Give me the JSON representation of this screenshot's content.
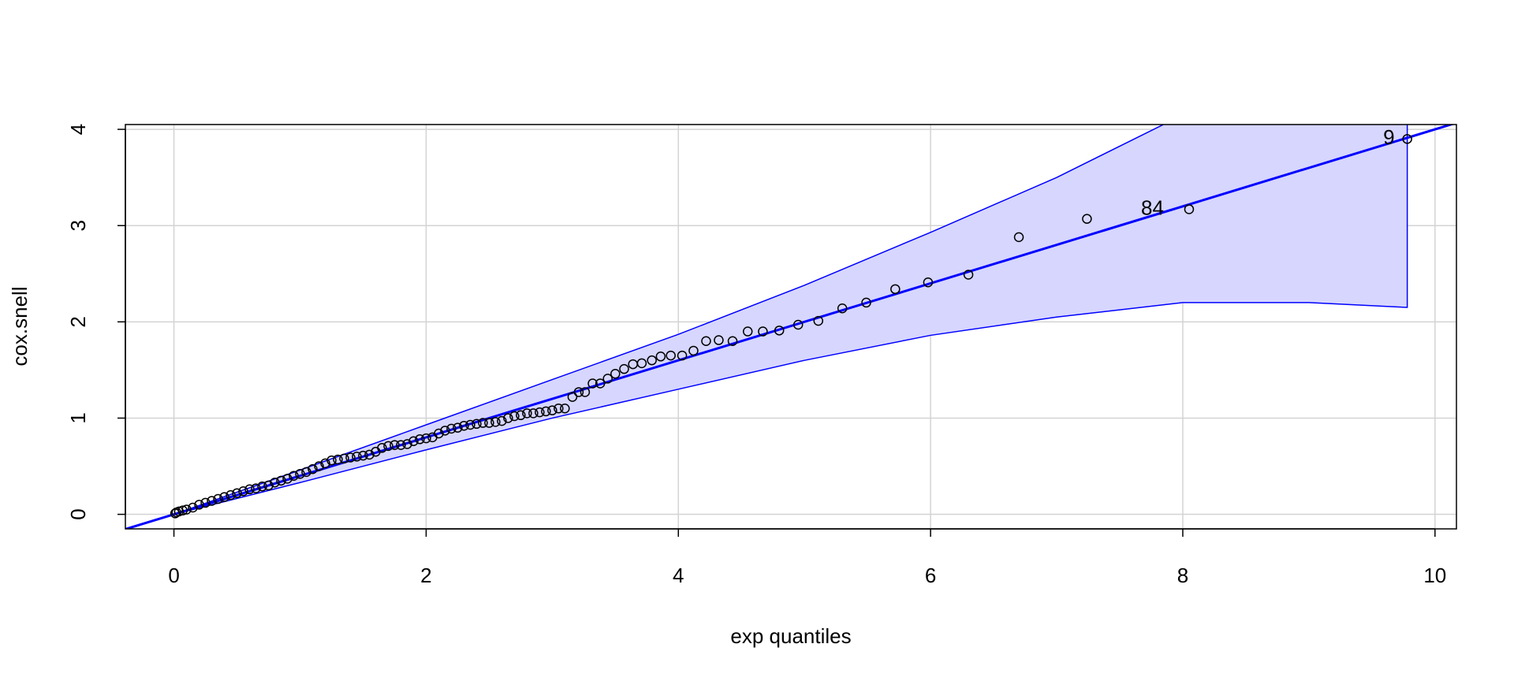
{
  "chart_data": {
    "type": "scatter",
    "x_label": "exp quantiles",
    "y_label": "cox.snell",
    "xlim": [
      -0.385,
      10.17
    ],
    "ylim": [
      -0.151,
      4.05
    ],
    "xticks": [
      0,
      2,
      4,
      6,
      8,
      10
    ],
    "yticks": [
      0,
      1,
      2,
      3,
      4
    ],
    "grid": true,
    "point_color": "#000000",
    "line_color": "#0000ff",
    "band_color": "#d6d6ff",
    "x": [
      9.78,
      8.05,
      7.24,
      6.7,
      6.3,
      5.98,
      5.72,
      5.49,
      5.3,
      5.11,
      4.95,
      4.8,
      4.67,
      4.55,
      4.43,
      4.32,
      4.22,
      4.12,
      4.03,
      3.94,
      3.86,
      3.79,
      3.71,
      3.64,
      3.57,
      3.5,
      3.44,
      3.38,
      3.32,
      3.26,
      3.21,
      3.16,
      3.1,
      3.05,
      3.0,
      2.95,
      2.9,
      2.85,
      2.8,
      2.75,
      2.7,
      2.65,
      2.6,
      2.55,
      2.5,
      2.45,
      2.4,
      2.35,
      2.3,
      2.25,
      2.2,
      2.15,
      2.1,
      2.05,
      2.0,
      1.95,
      1.9,
      1.85,
      1.8,
      1.75,
      1.7,
      1.65,
      1.6,
      1.55,
      1.5,
      1.45,
      1.4,
      1.35,
      1.3,
      1.25,
      1.2,
      1.15,
      1.1,
      1.05,
      1.0,
      0.95,
      0.9,
      0.85,
      0.8,
      0.75,
      0.7,
      0.65,
      0.6,
      0.55,
      0.5,
      0.45,
      0.4,
      0.35,
      0.3,
      0.25,
      0.2,
      0.15,
      0.1,
      0.07,
      0.04,
      0.02,
      0.01
    ],
    "y": [
      3.9,
      3.17,
      3.07,
      2.88,
      2.49,
      2.41,
      2.34,
      2.2,
      2.14,
      2.01,
      1.97,
      1.91,
      1.9,
      1.9,
      1.8,
      1.81,
      1.8,
      1.7,
      1.65,
      1.65,
      1.64,
      1.6,
      1.57,
      1.56,
      1.51,
      1.46,
      1.41,
      1.36,
      1.36,
      1.27,
      1.27,
      1.22,
      1.1,
      1.1,
      1.08,
      1.07,
      1.06,
      1.05,
      1.05,
      1.03,
      1.02,
      1.0,
      0.97,
      0.96,
      0.95,
      0.95,
      0.94,
      0.93,
      0.92,
      0.9,
      0.89,
      0.87,
      0.84,
      0.8,
      0.79,
      0.78,
      0.76,
      0.73,
      0.72,
      0.72,
      0.71,
      0.69,
      0.65,
      0.62,
      0.61,
      0.6,
      0.59,
      0.58,
      0.57,
      0.56,
      0.53,
      0.5,
      0.47,
      0.44,
      0.42,
      0.4,
      0.37,
      0.35,
      0.33,
      0.3,
      0.29,
      0.27,
      0.26,
      0.24,
      0.22,
      0.2,
      0.18,
      0.16,
      0.14,
      0.12,
      0.1,
      0.07,
      0.05,
      0.04,
      0.03,
      0.02,
      0.01
    ],
    "reference_line": {
      "intercept": 0,
      "slope": 0.4
    },
    "band": {
      "x": [
        0,
        1,
        2,
        3,
        4,
        5,
        6,
        7,
        8,
        9,
        9.78
      ],
      "upper": [
        0,
        0.46,
        0.93,
        1.4,
        1.87,
        2.38,
        2.93,
        3.5,
        4.15,
        4.8,
        5.3
      ],
      "lower": [
        0,
        0.33,
        0.67,
        1.0,
        1.3,
        1.6,
        1.86,
        2.05,
        2.2,
        2.2,
        2.15
      ]
    },
    "annotations": [
      {
        "text": "9",
        "x": 9.68,
        "y": 3.9
      },
      {
        "text": "84",
        "x": 7.85,
        "y": 3.17
      }
    ]
  }
}
